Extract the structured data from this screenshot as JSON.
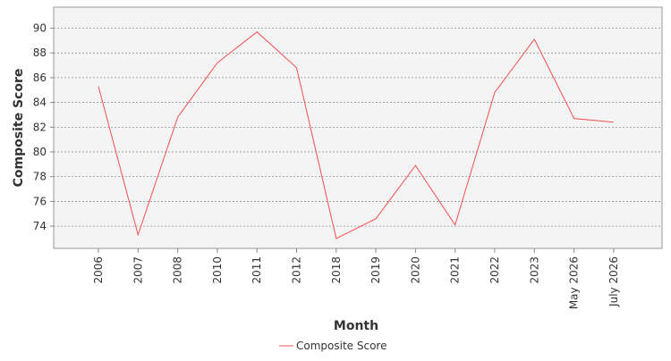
{
  "chart_data": {
    "type": "line",
    "title": "",
    "xlabel": "Month",
    "ylabel": "Composite Score",
    "categories": [
      "2006",
      "2007",
      "2008",
      "2010",
      "2011",
      "2012",
      "2018",
      "2019",
      "2020",
      "2021",
      "2022",
      "2023",
      "May 2026",
      "July 2026"
    ],
    "series": [
      {
        "name": "Composite Score",
        "color": "#f05050",
        "values": [
          85.3,
          73.3,
          82.8,
          87.2,
          89.7,
          86.8,
          73.0,
          74.6,
          78.9,
          74.1,
          84.8,
          89.1,
          82.7,
          82.4
        ]
      }
    ],
    "yticks": [
      "74",
      "76",
      "78",
      "80",
      "82",
      "84",
      "86",
      "88",
      "90"
    ],
    "ylim": [
      72.2,
      91.7
    ],
    "grid": true,
    "legend_position": "bottom-center",
    "plot_background": "#f4f4f4",
    "grid_color": "#808080"
  }
}
